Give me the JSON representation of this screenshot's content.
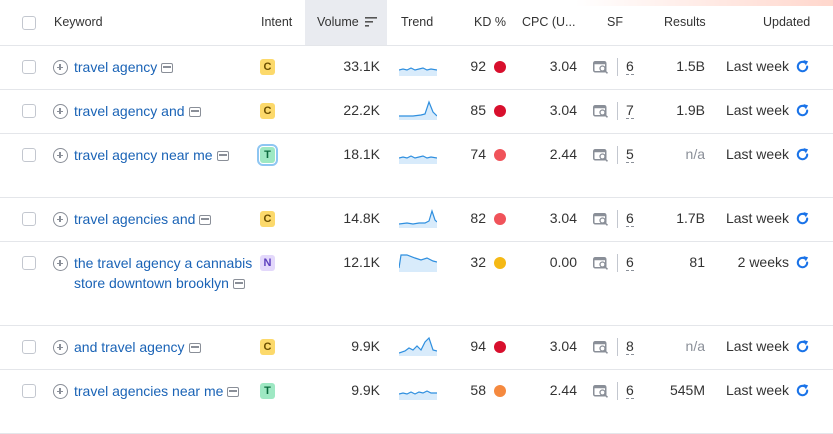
{
  "columns": {
    "keyword": "Keyword",
    "intent": "Intent",
    "volume": "Volume",
    "trend": "Trend",
    "kd": "KD %",
    "cpc": "CPC (U...",
    "sf": "SF",
    "results": "Results",
    "updated": "Updated"
  },
  "colors": {
    "link": "#1a63b6",
    "intent_commercial_bg": "#fcd96b",
    "intent_transactional_bg": "#9ee8c3",
    "intent_navigational_bg": "#e3d8fb",
    "kd_very_hard": "#d80f2d",
    "kd_hard": "#f0535a",
    "kd_possible": "#f5b915",
    "kd_difficult": "#f5893f"
  },
  "rows": [
    {
      "keyword": "travel agency",
      "intent": "C",
      "volume": "33.1K",
      "trend": "flat",
      "kd": "92",
      "kd_color": "#d80f2d",
      "cpc": "3.04",
      "sf": "6",
      "results": "1.5B",
      "updated": "Last week"
    },
    {
      "keyword": "travel agency and",
      "intent": "C",
      "volume": "22.2K",
      "trend": "peak",
      "kd": "85",
      "kd_color": "#d80f2d",
      "cpc": "3.04",
      "sf": "7",
      "results": "1.9B",
      "updated": "Last week"
    },
    {
      "keyword": "travel agency near me",
      "intent": "T",
      "volume": "18.1K",
      "trend": "flat",
      "kd": "74",
      "kd_color": "#f0535a",
      "cpc": "2.44",
      "sf": "5",
      "results": "n/a",
      "updated": "Last week"
    },
    {
      "keyword": "travel agencies and",
      "intent": "C",
      "volume": "14.8K",
      "trend": "spike-end",
      "kd": "82",
      "kd_color": "#f0535a",
      "cpc": "3.04",
      "sf": "6",
      "results": "1.7B",
      "updated": "Last week"
    },
    {
      "keyword": "the travel agency a cannabis store downtown brooklyn",
      "intent": "N",
      "volume": "12.1K",
      "trend": "high",
      "kd": "32",
      "kd_color": "#f5b915",
      "cpc": "0.00",
      "sf": "6",
      "results": "81",
      "updated": "2 weeks"
    },
    {
      "keyword": "and travel agency",
      "intent": "C",
      "volume": "9.9K",
      "trend": "rise",
      "kd": "94",
      "kd_color": "#d80f2d",
      "cpc": "3.04",
      "sf": "8",
      "results": "n/a",
      "updated": "Last week"
    },
    {
      "keyword": "travel agencies near me",
      "intent": "T",
      "volume": "9.9K",
      "trend": "wavy",
      "kd": "58",
      "kd_color": "#f5893f",
      "cpc": "2.44",
      "sf": "6",
      "results": "545M",
      "updated": "Last week"
    }
  ],
  "icons": {
    "add": "plus-circle-icon",
    "serp": "serp-snapshot-icon",
    "sf": "search-features-icon",
    "refresh": "refresh-icon",
    "sort": "sort-desc-icon"
  }
}
